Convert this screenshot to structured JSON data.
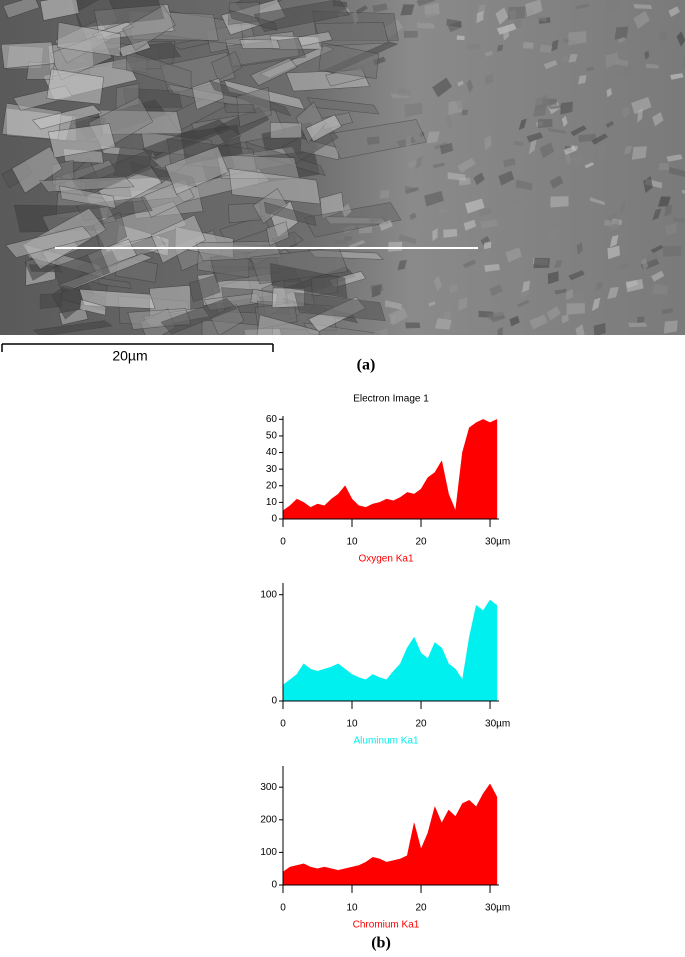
{
  "figure": {
    "scale_bar_label": "20µm",
    "panel_a_label": "(a)",
    "panel_b_label": "(b)"
  },
  "chart_data": [
    {
      "type": "area",
      "title": "Electron Image 1",
      "xlabel": "Oxygen Ka1",
      "color": "#ff0000",
      "x": [
        0,
        1,
        2,
        3,
        4,
        5,
        6,
        7,
        8,
        9,
        10,
        11,
        12,
        13,
        14,
        15,
        16,
        17,
        18,
        19,
        20,
        21,
        22,
        23,
        24,
        25,
        26,
        27,
        28,
        29,
        30,
        31
      ],
      "values": [
        5,
        8,
        12,
        10,
        7,
        9,
        8,
        12,
        15,
        20,
        12,
        8,
        7,
        9,
        10,
        12,
        11,
        13,
        16,
        15,
        18,
        25,
        28,
        35,
        15,
        5,
        40,
        55,
        58,
        60,
        58,
        60
      ],
      "xlim": [
        0,
        31.3
      ],
      "ylim": [
        0,
        62
      ],
      "xticks": [
        0,
        10,
        20,
        {
          "value": 30,
          "label": "30µm"
        }
      ],
      "yticks": [
        0,
        10,
        20,
        30,
        40,
        50,
        60
      ]
    },
    {
      "type": "area",
      "xlabel": "Aluminum Ka1",
      "color": "#00f0f0",
      "x": [
        0,
        1,
        2,
        3,
        4,
        5,
        6,
        7,
        8,
        9,
        10,
        11,
        12,
        13,
        14,
        15,
        16,
        17,
        18,
        19,
        20,
        21,
        22,
        23,
        24,
        25,
        26,
        27,
        28,
        29,
        30,
        31
      ],
      "values": [
        15,
        20,
        25,
        35,
        30,
        28,
        30,
        32,
        35,
        30,
        25,
        22,
        20,
        25,
        22,
        20,
        28,
        35,
        50,
        60,
        45,
        40,
        55,
        50,
        35,
        30,
        20,
        60,
        90,
        85,
        95,
        90
      ],
      "xlim": [
        0,
        31.3
      ],
      "ylim": [
        0,
        111
      ],
      "xticks": [
        0,
        10,
        20,
        {
          "value": 30,
          "label": "30µm"
        }
      ],
      "yticks": [
        0,
        100
      ]
    },
    {
      "type": "area",
      "xlabel": "Chromium Ka1",
      "color": "#ff0000",
      "x": [
        0,
        1,
        2,
        3,
        4,
        5,
        6,
        7,
        8,
        9,
        10,
        11,
        12,
        13,
        14,
        15,
        16,
        17,
        18,
        19,
        20,
        21,
        22,
        23,
        24,
        25,
        26,
        27,
        28,
        29,
        30,
        31
      ],
      "values": [
        40,
        55,
        60,
        65,
        55,
        50,
        55,
        50,
        45,
        50,
        55,
        60,
        70,
        85,
        80,
        70,
        75,
        80,
        90,
        190,
        110,
        160,
        240,
        190,
        230,
        210,
        250,
        260,
        240,
        280,
        310,
        270
      ],
      "xlim": [
        0,
        31.3
      ],
      "ylim": [
        0,
        365
      ],
      "xticks": [
        0,
        10,
        20,
        {
          "value": 30,
          "label": "30µm"
        }
      ],
      "yticks": [
        0,
        100,
        200,
        300
      ]
    }
  ]
}
